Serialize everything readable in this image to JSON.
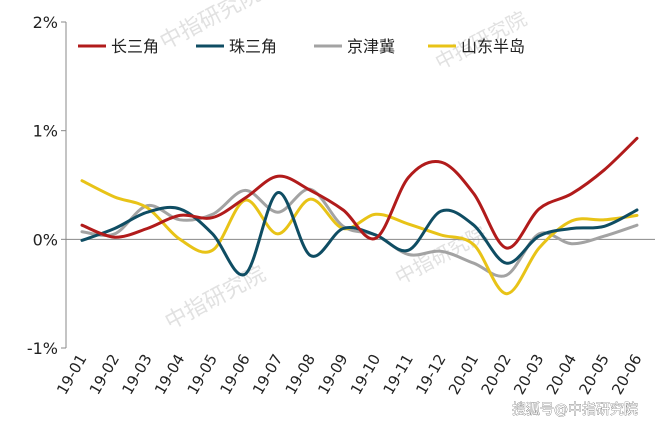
{
  "chart_data": {
    "type": "line",
    "categories": [
      "19-01",
      "19-02",
      "19-03",
      "19-04",
      "19-05",
      "19-06",
      "19-07",
      "19-08",
      "19-09",
      "19-10",
      "19-11",
      "19-12",
      "20-01",
      "20-02",
      "20-03",
      "20-04",
      "20-05",
      "20-06"
    ],
    "y_ticks": [
      "2%",
      "1%",
      "0%",
      "-1%"
    ],
    "ylim": [
      -1,
      2
    ],
    "y_unit": "%",
    "legend_position": "top-left",
    "grid": false,
    "series": [
      {
        "name": "长三角",
        "color": "#b11b1b",
        "values": [
          0.13,
          0.02,
          0.1,
          0.22,
          0.2,
          0.38,
          0.58,
          0.45,
          0.27,
          0.01,
          0.57,
          0.71,
          0.42,
          -0.08,
          0.28,
          0.42,
          0.64,
          0.93
        ]
      },
      {
        "name": "珠三角",
        "color": "#0f4d63",
        "values": [
          -0.01,
          0.1,
          0.25,
          0.28,
          0.05,
          -0.32,
          0.43,
          -0.15,
          0.1,
          0.04,
          -0.1,
          0.26,
          0.13,
          -0.22,
          0.03,
          0.1,
          0.12,
          0.27
        ]
      },
      {
        "name": "京津冀",
        "color": "#a3a3a3",
        "values": [
          0.07,
          0.05,
          0.31,
          0.18,
          0.23,
          0.45,
          0.25,
          0.46,
          0.12,
          0.04,
          -0.14,
          -0.11,
          -0.22,
          -0.33,
          0.05,
          -0.04,
          0.03,
          0.13
        ]
      },
      {
        "name": "山东半岛",
        "color": "#e8c317",
        "values": [
          0.54,
          0.39,
          0.29,
          0.0,
          -0.1,
          0.36,
          0.05,
          0.37,
          0.1,
          0.23,
          0.14,
          0.04,
          -0.05,
          -0.5,
          -0.08,
          0.17,
          0.18,
          0.22
        ]
      }
    ]
  },
  "watermark": "中指研究院",
  "source_label": "搜狐号@中指研究院"
}
